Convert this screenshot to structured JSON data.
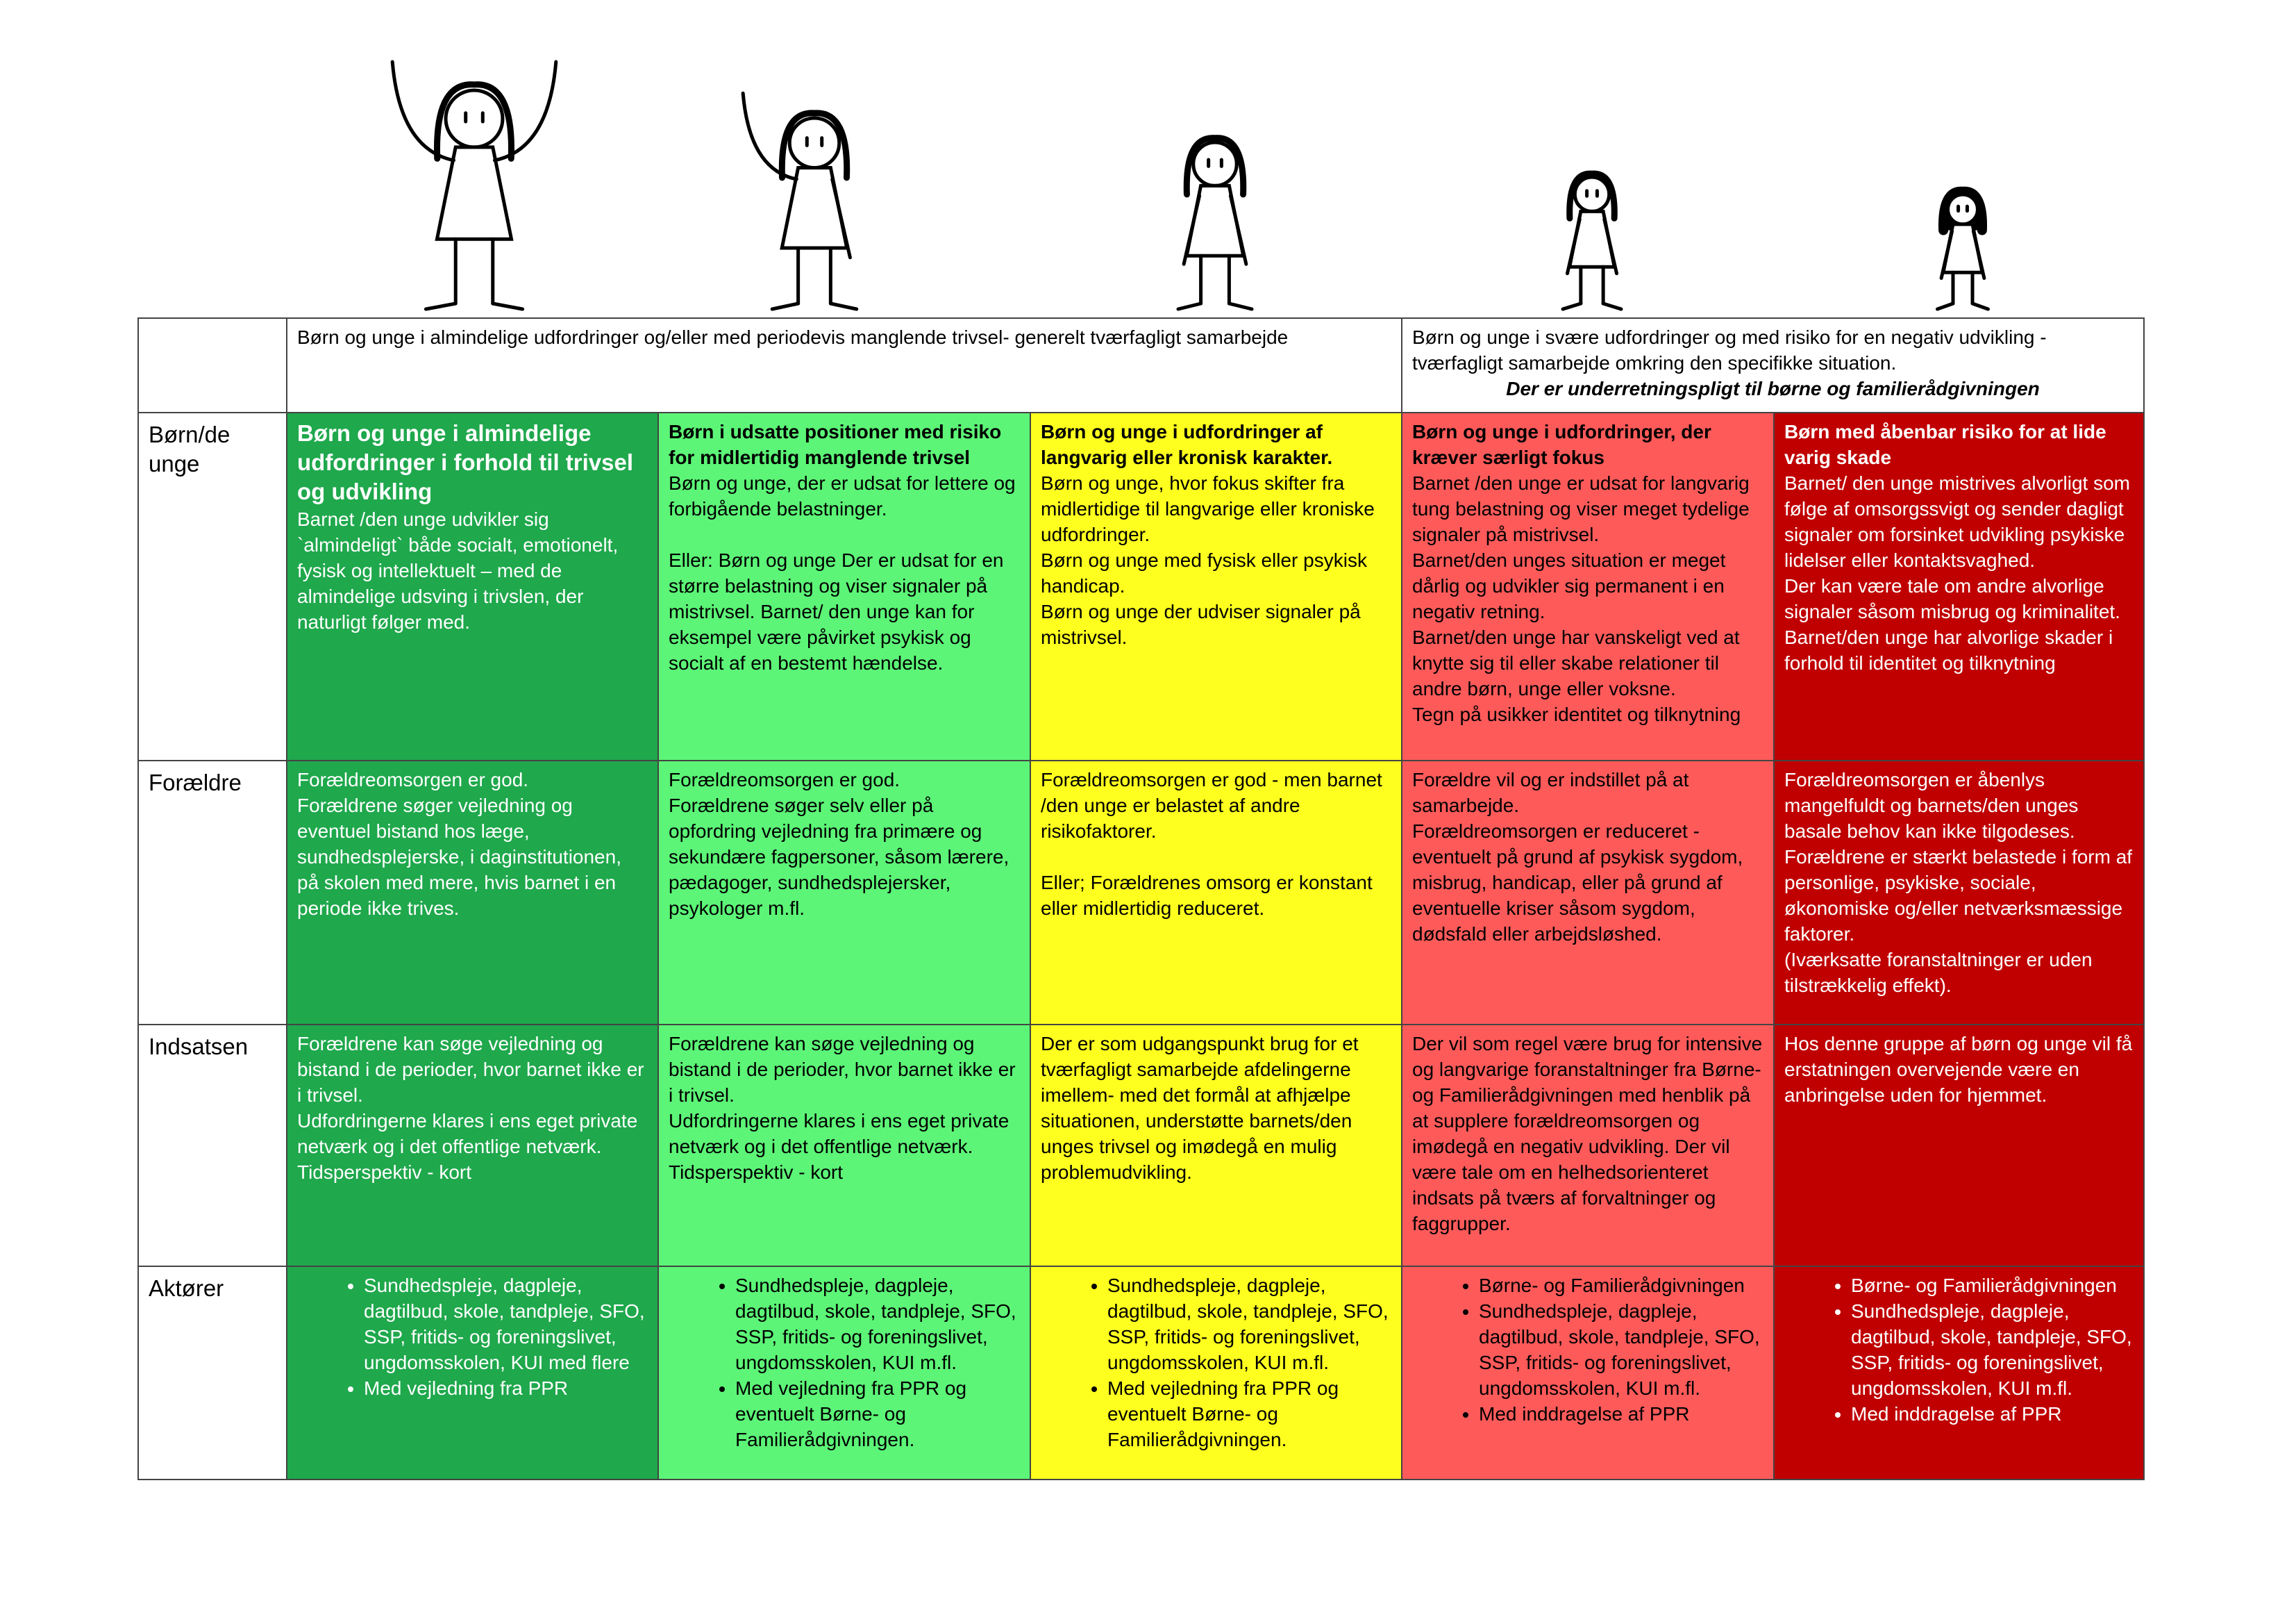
{
  "header": {
    "left": "Børn og unge i almindelige udfordringer og/eller med periodevis manglende trivsel- generelt tværfagligt samarbejde",
    "right": "Børn og unge i svære udfordringer og med risiko for en negativ udvikling - tværfagligt samarbejde omkring den specifikke situation.",
    "right_note": "Der er underretningspligt til børne og familierådgivningen"
  },
  "rows": [
    {
      "label": "Børn/de unge",
      "cells": [
        {
          "title": "Børn og unge i almindelige udfordringer i forhold til trivsel og udvikling",
          "blocks": [
            [
              "Barnet /den unge udvikler sig `almindeligt` både socialt, emotionelt, fysisk og intellektuelt – med de almindelige udsving i trivslen, der naturligt følger med."
            ]
          ]
        },
        {
          "title": "Børn i udsatte positioner med risiko for midlertidig manglende trivsel",
          "blocks": [
            [
              "Børn og unge, der er udsat for lettere og forbigående belastninger."
            ],
            [
              "Eller: Børn og unge Der er udsat for en større belastning og viser signaler på mistrivsel. Barnet/ den unge kan for eksempel være påvirket psykisk og socialt af en bestemt hændelse."
            ]
          ]
        },
        {
          "title": "Børn og unge i udfordringer af langvarig eller kronisk karakter.",
          "blocks": [
            [
              "Børn og unge, hvor fokus skifter fra midlertidige til langvarige eller kroniske udfordringer.",
              "Børn og unge med fysisk eller psykisk handicap.",
              "Børn og unge der udviser signaler på mistrivsel."
            ]
          ]
        },
        {
          "title": "Børn og unge i udfordringer, der kræver særligt fokus",
          "blocks": [
            [
              "Barnet /den unge er udsat for langvarig tung belastning og viser meget tydelige signaler på mistrivsel.",
              "Barnet/den unges situation er meget dårlig og udvikler sig permanent i en negativ retning.",
              "Barnet/den unge har vanskeligt ved at knytte sig til eller skabe relationer til andre børn, unge eller voksne.",
              "Tegn på usikker identitet og tilknytning"
            ]
          ]
        },
        {
          "title": "Børn med åbenbar risiko for at lide varig skade",
          "blocks": [
            [
              "Barnet/ den unge mistrives alvorligt som følge af omsorgssvigt og sender dagligt signaler om forsinket udvikling psykiske lidelser eller kontaktsvaghed.",
              "Der kan være tale om andre alvorlige signaler såsom misbrug og kriminalitet.",
              "Barnet/den unge har alvorlige skader i forhold til identitet og tilknytning"
            ]
          ]
        }
      ]
    },
    {
      "label": "Forældre",
      "cells": [
        {
          "blocks": [
            [
              "Forældreomsorgen er god.",
              "Forældrene søger vejledning og eventuel bistand hos læge, sundhedsplejerske, i daginstitutionen, på skolen med mere, hvis barnet i en periode ikke trives."
            ]
          ]
        },
        {
          "blocks": [
            [
              "Forældreomsorgen er god.",
              "Forældrene søger selv eller på opfordring vejledning fra primære og sekundære fagpersoner, såsom lærere, pædagoger, sundhedsplejersker, psykologer m.fl."
            ]
          ]
        },
        {
          "blocks": [
            [
              "Forældreomsorgen er god - men barnet /den unge er belastet af andre risikofaktorer."
            ],
            [
              "Eller; Forældrenes omsorg er konstant eller midlertidig reduceret."
            ]
          ]
        },
        {
          "blocks": [
            [
              "Forældre vil og er indstillet på at samarbejde.",
              "Forældreomsorgen er reduceret - eventuelt på grund af psykisk sygdom, misbrug, handicap, eller på grund af eventuelle kriser såsom sygdom, dødsfald eller arbejdsløshed."
            ]
          ]
        },
        {
          "blocks": [
            [
              "Forældreomsorgen er åbenlys mangelfuldt og barnets/den unges basale behov kan ikke tilgodeses.",
              "Forældrene er stærkt belastede i form af personlige, psykiske, sociale, økonomiske og/eller netværksmæssige faktorer.",
              "(Iværksatte foranstaltninger er uden tilstrækkelig effekt)."
            ]
          ]
        }
      ]
    },
    {
      "label": "Indsatsen",
      "cells": [
        {
          "blocks": [
            [
              "Forældrene kan søge vejledning og bistand i de perioder, hvor barnet ikke er i trivsel.",
              "Udfordringerne klares i ens eget private netværk og i det offentlige netværk.",
              "Tidsperspektiv - kort"
            ]
          ]
        },
        {
          "blocks": [
            [
              "Forældrene kan søge vejledning og bistand i de perioder, hvor barnet ikke er i trivsel.",
              "Udfordringerne klares i ens eget private netværk og i det offentlige netværk.",
              "Tidsperspektiv - kort"
            ]
          ]
        },
        {
          "blocks": [
            [
              "Der er som udgangspunkt brug for et tværfagligt samarbejde afdelingerne imellem- med det formål at afhjælpe situationen, understøtte barnets/den unges trivsel og imødegå en mulig problemudvikling."
            ]
          ]
        },
        {
          "blocks": [
            [
              "Der vil som regel være brug for intensive og langvarige foranstaltninger fra Børne- og Familierådgivningen med henblik på at supplere forældreomsorgen og imødegå en negativ udvikling. Der vil være tale om en helhedsorienteret indsats på tværs af forvaltninger og faggrupper."
            ]
          ]
        },
        {
          "blocks": [
            [
              "Hos denne gruppe af børn og unge vil få erstatningen overvejende være en anbringelse uden for hjemmet."
            ]
          ]
        }
      ]
    },
    {
      "label": "Aktører",
      "cells": [
        {
          "bullets": [
            "Sundhedspleje, dagpleje, dagtilbud, skole, tandpleje, SFO, SSP, fritids- og foreningslivet, ungdomsskolen, KUI med flere",
            "Med vejledning fra PPR"
          ]
        },
        {
          "bullets": [
            "Sundhedspleje, dagpleje, dagtilbud, skole, tandpleje, SFO, SSP, fritids- og foreningslivet, ungdomsskolen, KUI m.fl.",
            "Med vejledning fra PPR og eventuelt Børne- og Familierådgivningen."
          ]
        },
        {
          "bullets": [
            "Sundhedspleje, dagpleje, dagtilbud, skole, tandpleje, SFO, SSP, fritids- og foreningslivet, ungdomsskolen, KUI m.fl.",
            "Med vejledning fra PPR og eventuelt Børne- og Familierådgivningen."
          ]
        },
        {
          "bullets": [
            "Børne- og Familierådgivningen",
            "Sundhedspleje, dagpleje, dagtilbud, skole, tandpleje, SFO, SSP, fritids- og foreningslivet, ungdomsskolen, KUI m.fl.",
            "Med inddragelse af PPR"
          ]
        },
        {
          "bullets": [
            "Børne- og Familierådgivningen",
            "Sundhedspleje, dagpleje, dagtilbud, skole, tandpleje, SFO, SSP, fritids- og foreningslivet, ungdomsskolen, KUI m.fl.",
            "Med inddragelse af PPR"
          ]
        }
      ]
    }
  ]
}
